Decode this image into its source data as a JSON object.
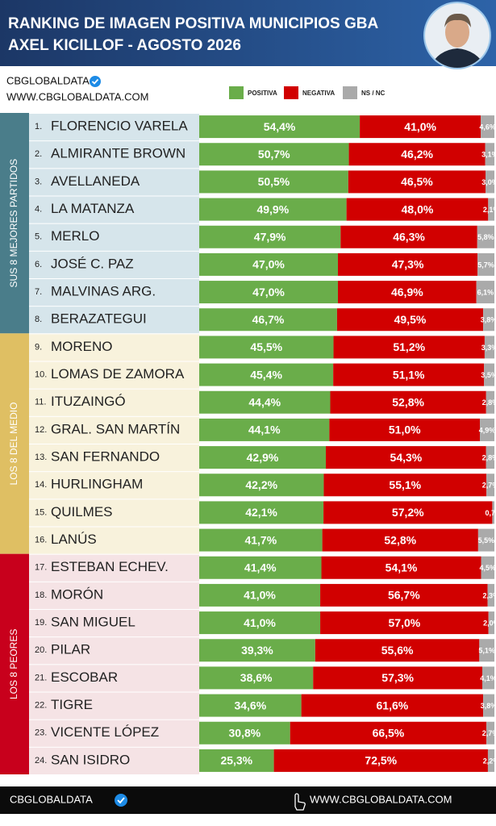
{
  "chart_data": {
    "type": "stacked_bar_horizontal",
    "title": [
      "RANKING DE IMAGEN POSITIVA MUNICIPIOS GBA",
      "AXEL KICILLOF - AGOSTO 2026"
    ],
    "brand": "CBGLOBALDATA",
    "website": "WWW.CBGLOBALDATA.COM",
    "footer_brand": "CBGLOBALDATA",
    "footer_website": "WWW.CBGLOBALDATA.COM",
    "ranks": [
      "1.",
      "2.",
      "3.",
      "4.",
      "5.",
      "6.",
      "7.",
      "8.",
      "9.",
      "10.",
      "11.",
      "12.",
      "13.",
      "14.",
      "15.",
      "16.",
      "17.",
      "18.",
      "19.",
      "20.",
      "21.",
      "22.",
      "23.",
      "24."
    ],
    "categories": [
      "FLORENCIO VARELA",
      "ALMIRANTE BROWN",
      "AVELLANEDA",
      "LA MATANZA",
      "MERLO",
      "JOSÉ C. PAZ",
      "MALVINAS ARG.",
      "BERAZATEGUI",
      "MORENO",
      "LOMAS DE ZAMORA",
      "ITUZAINGÓ",
      "GRAL. SAN MARTÍN",
      "SAN FERNANDO",
      "HURLINGHAM",
      "QUILMES",
      "LANÚS",
      "ESTEBAN ECHEV.",
      "MORÓN",
      "SAN MIGUEL",
      "PILAR",
      "ESCOBAR",
      "TIGRE",
      "VICENTE LÓPEZ",
      "SAN ISIDRO"
    ],
    "groups": [
      {
        "label": "SUS 8 MEJORES PARTIDOS",
        "color": "#4a7d8a",
        "background": "#d6e5eb"
      },
      {
        "label": "LOS 8 DEL MEDIO",
        "color": "#dfbf63",
        "background": "#f8f2dc"
      },
      {
        "label": "LOS 8 PEORES",
        "color": "#c8001c",
        "background": "#f5e3e5"
      }
    ],
    "series": [
      {
        "name": "POSITIVA",
        "color": "#6aad4a",
        "values": [
          54.4,
          50.7,
          50.5,
          49.9,
          47.9,
          47.0,
          47.0,
          46.7,
          45.5,
          45.4,
          44.4,
          44.1,
          42.9,
          42.2,
          42.1,
          41.7,
          41.4,
          41.0,
          41.0,
          39.3,
          38.6,
          34.6,
          30.8,
          25.3
        ],
        "value_labels": [
          "54,4%",
          "50,7%",
          "50,5%",
          "49,9%",
          "47,9%",
          "47,0%",
          "47,0%",
          "46,7%",
          "45,5%",
          "45,4%",
          "44,4%",
          "44,1%",
          "42,9%",
          "42,2%",
          "42,1%",
          "41,7%",
          "41,4%",
          "41,0%",
          "41,0%",
          "39,3%",
          "38,6%",
          "34,6%",
          "30,8%",
          "25,3%"
        ]
      },
      {
        "name": "NEGATIVA",
        "color": "#d10000",
        "values": [
          41.0,
          46.2,
          46.5,
          48.0,
          46.3,
          47.3,
          46.9,
          49.5,
          51.2,
          51.1,
          52.8,
          51.0,
          54.3,
          55.1,
          57.2,
          52.8,
          54.1,
          56.7,
          57.0,
          55.6,
          57.3,
          61.6,
          66.5,
          72.5
        ],
        "value_labels": [
          "41,0%",
          "46,2%",
          "46,5%",
          "48,0%",
          "46,3%",
          "47,3%",
          "46,9%",
          "49,5%",
          "51,2%",
          "51,1%",
          "52,8%",
          "51,0%",
          "54,3%",
          "55,1%",
          "57,2%",
          "52,8%",
          "54,1%",
          "56,7%",
          "57,0%",
          "55,6%",
          "57,3%",
          "61,6%",
          "66,5%",
          "72,5%"
        ]
      },
      {
        "name": "NS / NC",
        "color": "#aaaaaa",
        "values": [
          4.6,
          3.1,
          3.0,
          2.1,
          5.8,
          5.7,
          6.1,
          3.8,
          3.3,
          3.5,
          2.8,
          4.9,
          2.8,
          2.7,
          0.7,
          5.5,
          4.5,
          2.3,
          2.0,
          5.1,
          4.1,
          3.8,
          2.7,
          2.2
        ],
        "value_labels": [
          "4,6%",
          "3,1%",
          "3,0%",
          "2,1%",
          "5,8%",
          "5,7%",
          "6,1%",
          "3,8%",
          "3,3%",
          "3,5%",
          "2,8%",
          "4,9%",
          "2,8%",
          "2,7%",
          "0,7%",
          "5,5%",
          "4,5%",
          "2,3%",
          "2,0%",
          "5,1%",
          "4,1%",
          "3,8%",
          "2,7%",
          "2,2%"
        ]
      }
    ]
  }
}
